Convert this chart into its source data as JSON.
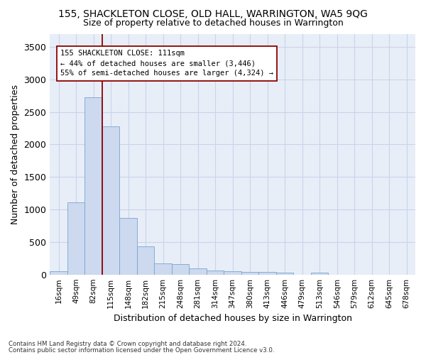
{
  "title": "155, SHACKLETON CLOSE, OLD HALL, WARRINGTON, WA5 9QG",
  "subtitle": "Size of property relative to detached houses in Warrington",
  "xlabel": "Distribution of detached houses by size in Warrington",
  "ylabel": "Number of detached properties",
  "bar_color": "#ccd9ee",
  "bar_edge_color": "#7ba3d0",
  "grid_color": "#c8d4e8",
  "background_color": "#e8eef8",
  "categories": [
    "16sqm",
    "49sqm",
    "82sqm",
    "115sqm",
    "148sqm",
    "182sqm",
    "215sqm",
    "248sqm",
    "281sqm",
    "314sqm",
    "347sqm",
    "380sqm",
    "413sqm",
    "446sqm",
    "479sqm",
    "513sqm",
    "546sqm",
    "579sqm",
    "612sqm",
    "645sqm",
    "678sqm"
  ],
  "values": [
    55,
    1110,
    2720,
    2280,
    870,
    430,
    175,
    165,
    90,
    60,
    55,
    40,
    35,
    25,
    0,
    30,
    0,
    0,
    0,
    0,
    0
  ],
  "ylim": [
    0,
    3700
  ],
  "yticks": [
    0,
    500,
    1000,
    1500,
    2000,
    2500,
    3000,
    3500
  ],
  "property_line_x": 2.5,
  "annotation_text": "155 SHACKLETON CLOSE: 111sqm\n← 44% of detached houses are smaller (3,446)\n55% of semi-detached houses are larger (4,324) →",
  "footer_line1": "Contains HM Land Registry data © Crown copyright and database right 2024.",
  "footer_line2": "Contains public sector information licensed under the Open Government Licence v3.0."
}
